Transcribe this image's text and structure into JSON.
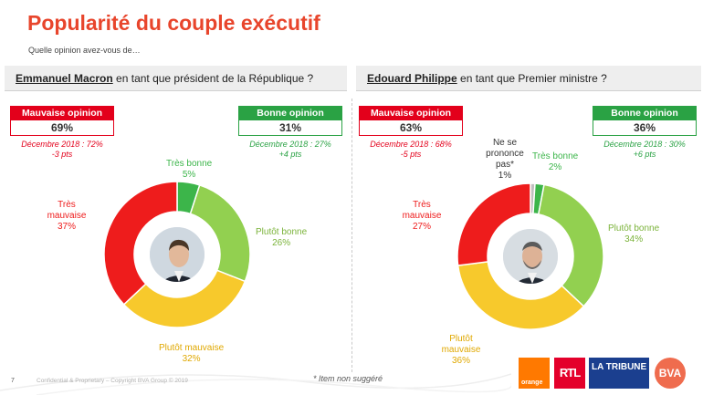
{
  "header": {
    "title": "Popularité du couple exécutif",
    "subtitle": "Quelle opinion avez-vous de…"
  },
  "footer": {
    "page_number": "7",
    "confidential": "Confidential & Proprietary – Copyright BVA Group © 2019",
    "note": "* Item non suggéré",
    "logos": [
      "orange",
      "RTL",
      "LA TRIBUNE",
      "BVA"
    ]
  },
  "colors": {
    "bad": "#e3001b",
    "good": "#2aa244",
    "tres_bonne": "#3cb54a",
    "plutot_bonne": "#92d050",
    "plutot_mauvaise": "#f7c92c",
    "tres_mauvaise": "#ee1c1c",
    "ne_se_prononce_pas": "#bfbfbf",
    "title": "#e8452c"
  },
  "chart_data": [
    {
      "type": "pie",
      "donut": true,
      "person": "Emmanuel Macron",
      "question": "en tant que président de la République ?",
      "categories": [
        "Très bonne",
        "Plutôt bonne",
        "Plutôt mauvaise",
        "Très mauvaise"
      ],
      "values": [
        5,
        26,
        32,
        37
      ],
      "labels": [
        "5%",
        "26%",
        "32%",
        "37%"
      ],
      "bad_box": {
        "title": "Mauvaise opinion",
        "value": "69%",
        "compare": "Décembre 2018 : 72%",
        "delta": "-3 pts"
      },
      "good_box": {
        "title": "Bonne opinion",
        "value": "31%",
        "compare": "Décembre 2018 : 27%",
        "delta": "+4 pts"
      }
    },
    {
      "type": "pie",
      "donut": true,
      "person": "Edouard Philippe",
      "question": "en tant que Premier ministre ?",
      "categories": [
        "Ne se prononce pas*",
        "Très bonne",
        "Plutôt bonne",
        "Plutôt mauvaise",
        "Très mauvaise"
      ],
      "values": [
        1,
        2,
        34,
        36,
        27
      ],
      "labels": [
        "1%",
        "2%",
        "34%",
        "36%",
        "27%"
      ],
      "bad_box": {
        "title": "Mauvaise opinion",
        "value": "63%",
        "compare": "Décembre 2018 : 68%",
        "delta": "-5 pts"
      },
      "good_box": {
        "title": "Bonne opinion",
        "value": "36%",
        "compare": "Décembre 2018 : 30%",
        "delta": "+6 pts"
      }
    }
  ]
}
